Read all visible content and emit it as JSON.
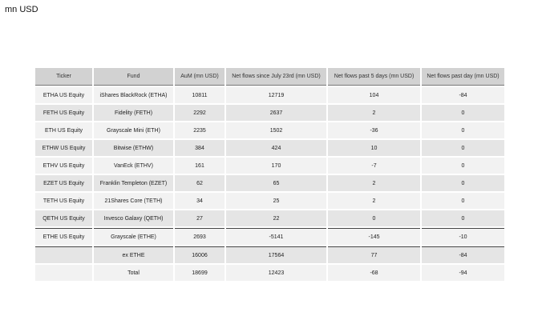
{
  "title": "mn USD",
  "table": {
    "headers": [
      "Ticker",
      "Fund",
      "AuM (mn USD)",
      "Net flows since July 23rd (mn USD)",
      "Net flows past 5 days (mn USD)",
      "Net flows past day (mn USD)"
    ],
    "rows": [
      [
        "ETHA US Equity",
        "iShares BlackRock (ETHA)",
        "10811",
        "12719",
        "104",
        "-84"
      ],
      [
        "FETH US Equity",
        "Fidelity (FETH)",
        "2292",
        "2637",
        "2",
        "0"
      ],
      [
        "ETH US Equity",
        "Grayscale Mini (ETH)",
        "2235",
        "1502",
        "-36",
        "0"
      ],
      [
        "ETHW US Equity",
        "Bitwise (ETHW)",
        "384",
        "424",
        "10",
        "0"
      ],
      [
        "ETHV US Equity",
        "VanEck (ETHV)",
        "161",
        "170",
        "-7",
        "0"
      ],
      [
        "EZET US Equity",
        "Franklin Templeton (EZET)",
        "62",
        "65",
        "2",
        "0"
      ],
      [
        "TETH US Equity",
        "21Shares Core (TETH)",
        "34",
        "25",
        "2",
        "0"
      ],
      [
        "QETH US Equity",
        "Invesco Galaxy (QETH)",
        "27",
        "22",
        "0",
        "0"
      ],
      [
        "ETHE US Equity",
        "Grayscale (ETHE)",
        "2693",
        "-5141",
        "-145",
        "-10"
      ],
      [
        "",
        "ex ETHE",
        "16006",
        "17564",
        "77",
        "-84"
      ],
      [
        "",
        "Total",
        "18699",
        "12423",
        "-68",
        "-94"
      ]
    ]
  }
}
